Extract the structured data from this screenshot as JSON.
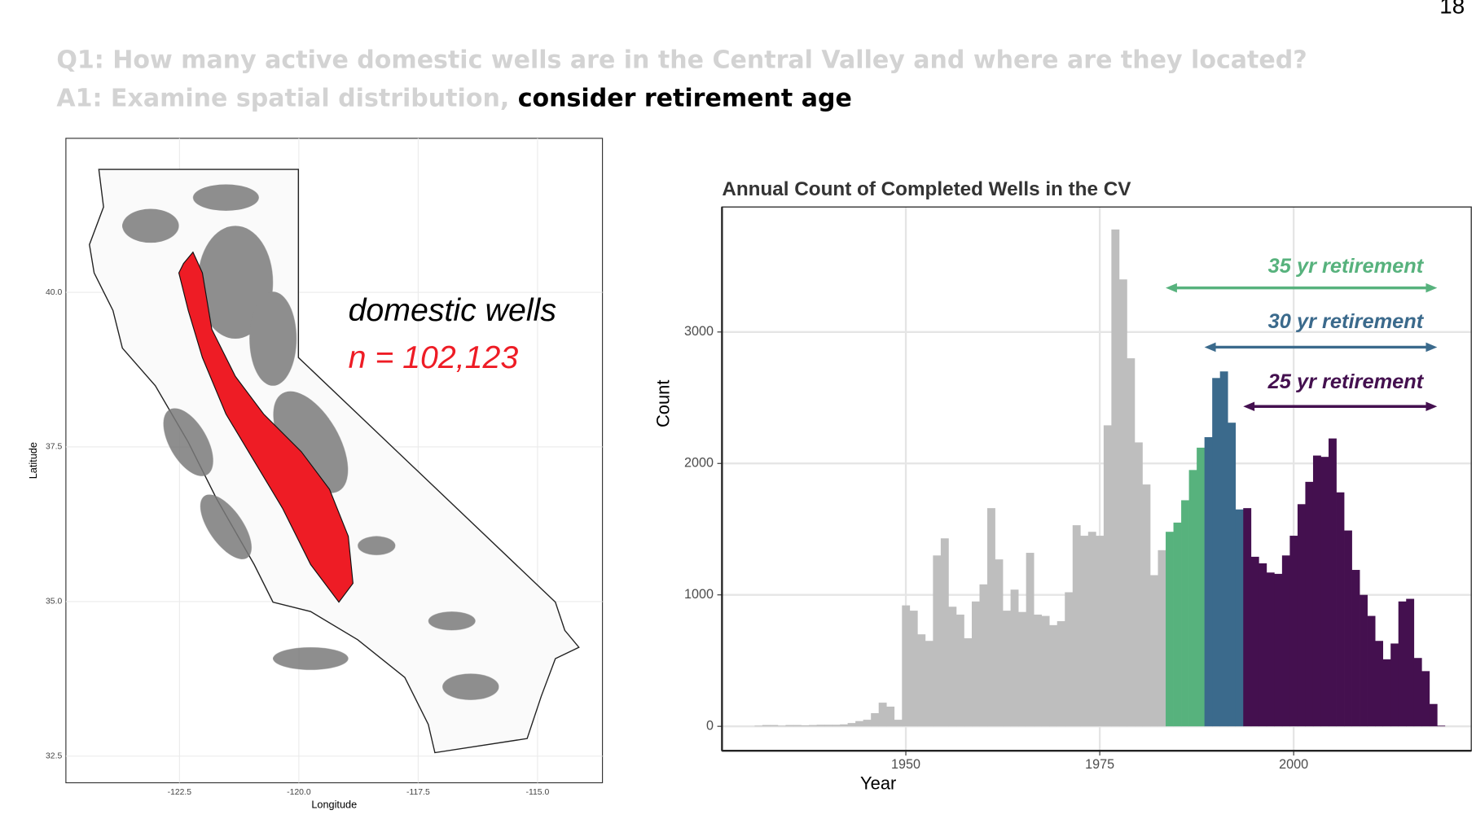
{
  "slide_number": "18",
  "header": {
    "question": "Q1: How many active domestic wells are in the Central Valley and where are they located?",
    "answer_grey": "A1: Examine spatial distribution,",
    "answer_bold": "consider retirement age"
  },
  "chart_data": [
    {
      "type": "map",
      "x_label": "Longitude",
      "y_label": "Latitude",
      "xlim": [
        -124.88,
        -113.64
      ],
      "ylim": [
        32.07,
        42.49
      ],
      "xticks": [
        -122.5,
        {
          "value": -120,
          "label": "-120.0"
        },
        -117.5,
        {
          "value": -115,
          "label": "-115.0"
        }
      ],
      "yticks": [
        32.5,
        {
          "value": 35,
          "label": "35.0"
        },
        37.5,
        {
          "value": 40,
          "label": "40.0"
        }
      ],
      "annotations": [
        {
          "text": "domestic wells",
          "color": "#000000"
        },
        {
          "text": "n = 102,123",
          "color": "#ee1c25"
        }
      ],
      "grid": true
    },
    {
      "type": "histogram",
      "title": "Annual Count of Completed Wells in the CV",
      "x_label": "Year",
      "y_label": "Count",
      "xlim": [
        1926.3,
        2022.9
      ],
      "ylim": [
        -186,
        3951
      ],
      "xticks": [
        1950,
        1975,
        2000
      ],
      "yticks": [
        0,
        1000,
        2000,
        3000
      ],
      "grid": true,
      "color": "#bebebe",
      "bins": [
        1930.5,
        1931.5,
        1932.5,
        1933.5,
        1934.5,
        1935.5,
        1936.5,
        1937.5,
        1938.5,
        1939.5,
        1940.5,
        1941.5,
        1942.5,
        1943.5,
        1944.5,
        1945.5,
        1946.5,
        1947.5,
        1948.5,
        1949.5,
        1950.5,
        1951.5,
        1952.5,
        1953.5,
        1954.5,
        1955.5,
        1956.5,
        1957.5,
        1958.5,
        1959.5,
        1960.5,
        1961.5,
        1962.5,
        1963.5,
        1964.5,
        1965.5,
        1966.5,
        1967.5,
        1968.5,
        1969.5,
        1970.5,
        1971.5,
        1972.5,
        1973.5,
        1974.5,
        1975.5,
        1976.5,
        1977.5,
        1978.5,
        1979.5,
        1980.5,
        1981.5,
        1982.5,
        1983.5,
        1984.5,
        1985.5,
        1986.5,
        1987.5,
        1988.5,
        1989.5,
        1990.5,
        1991.5,
        1992.5,
        1993.5,
        1994.5,
        1995.5,
        1996.5,
        1997.5,
        1998.5,
        1999.5,
        2000.5,
        2001.5,
        2002.5,
        2003.5,
        2004.5,
        2005.5,
        2006.5,
        2007.5,
        2008.5,
        2009.5,
        2010.5,
        2011.5,
        2012.5,
        2013.5,
        2014.5,
        2015.5,
        2016.5,
        2017.5,
        2018.5,
        2019.5
      ],
      "counts": [
        5,
        10,
        10,
        5,
        10,
        10,
        8,
        10,
        12,
        12,
        12,
        15,
        25,
        40,
        50,
        100,
        180,
        150,
        50,
        920,
        880,
        700,
        650,
        1300,
        1430,
        910,
        850,
        670,
        950,
        1080,
        1660,
        1270,
        880,
        1040,
        870,
        1320,
        850,
        840,
        770,
        800,
        1020,
        1530,
        1450,
        1480,
        1450,
        2290,
        3780,
        3400,
        2800,
        2160,
        1840,
        1150,
        1340,
        1480,
        1550,
        1720,
        1950,
        2120,
        2200,
        2650,
        2700,
        2310,
        1650,
        1660,
        1290,
        1240,
        1170,
        1160,
        1300,
        1450,
        1690,
        1860,
        2060,
        2050,
        2190,
        1780,
        1490,
        1190,
        1000,
        840,
        650,
        510,
        630,
        950,
        970,
        520,
        420,
        170,
        5
      ],
      "annotations": [
        {
          "text": "35 yr retirement",
          "color": "#57b27d",
          "from": 1983.5,
          "to": 2018.5
        },
        {
          "text": "30 yr retirement",
          "color": "#3b6a8c",
          "from": 1988.5,
          "to": 2018.5
        },
        {
          "text": "25 yr retirement",
          "color": "#44104f",
          "from": 1993.5,
          "to": 2018.5
        }
      ]
    }
  ]
}
